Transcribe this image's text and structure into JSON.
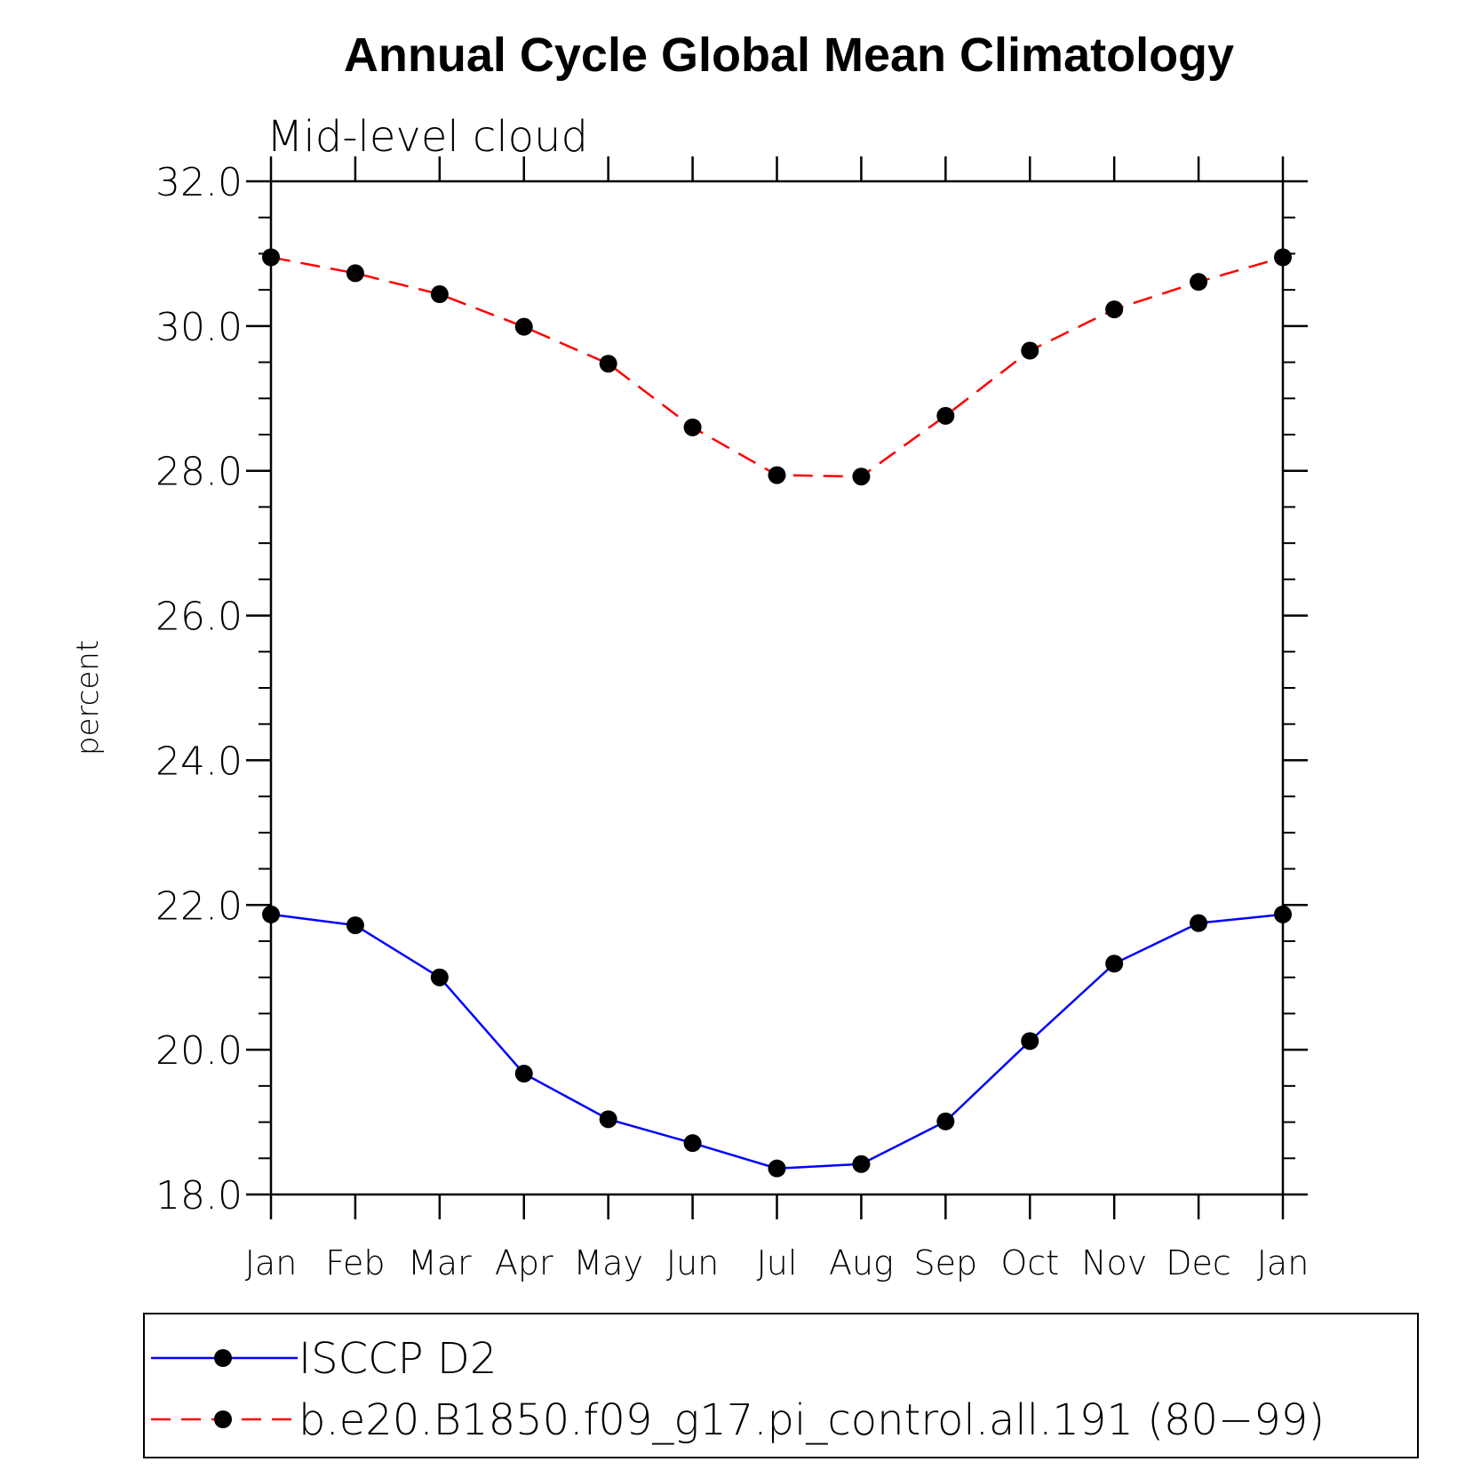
{
  "chart_data": {
    "type": "line",
    "title": "Annual Cycle Global Mean Climatology",
    "subtitle": "Mid-level cloud",
    "ylabel": "percent",
    "xlabel": "",
    "categories": [
      "Jan",
      "Feb",
      "Mar",
      "Apr",
      "May",
      "Jun",
      "Jul",
      "Aug",
      "Sep",
      "Oct",
      "Nov",
      "Dec",
      "Jan"
    ],
    "ylim": [
      18.0,
      32.0
    ],
    "yticks": [
      "18.0",
      "20.0",
      "22.0",
      "24.0",
      "26.0",
      "28.0",
      "30.0",
      "32.0"
    ],
    "grid": false,
    "legend_position": "bottom",
    "series": [
      {
        "name": "ISCCP D2",
        "color": "#0000ff",
        "dash": "solid",
        "marker": "filled-circle",
        "values": [
          21.87,
          21.72,
          21.0,
          19.67,
          19.04,
          18.71,
          18.36,
          18.42,
          19.01,
          20.12,
          21.19,
          21.75,
          21.87
        ]
      },
      {
        "name": "b.e20.B1850.f09_g17.pi_control.all.191 (80−99)",
        "color": "#ff0000",
        "dash": "dashed",
        "marker": "filled-circle",
        "values": [
          30.95,
          30.73,
          30.44,
          29.99,
          29.48,
          28.6,
          27.94,
          27.92,
          28.76,
          29.66,
          30.23,
          30.61,
          30.95
        ]
      }
    ]
  }
}
